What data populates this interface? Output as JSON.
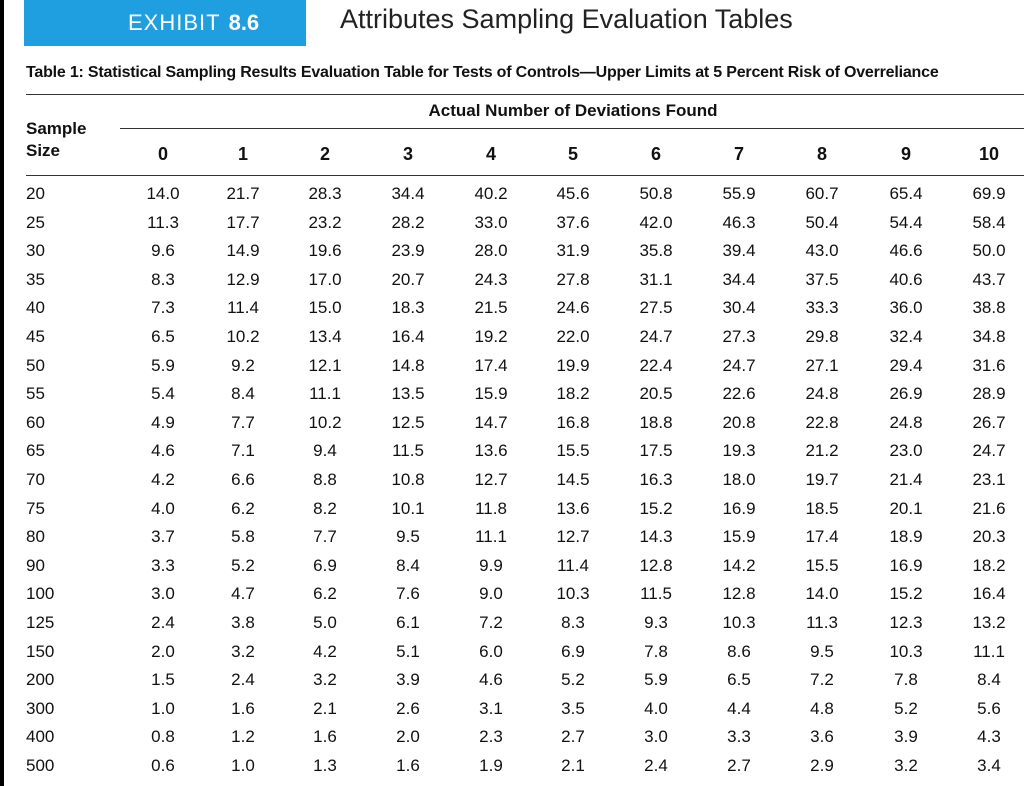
{
  "exhibit": {
    "label": "EXHIBIT",
    "number": "8.6",
    "title": "Attributes Sampling Evaluation Tables"
  },
  "table": {
    "caption": "Table 1: Statistical Sampling Results Evaluation Table for Tests of Controls—Upper Limits at 5 Percent Risk of Overreliance",
    "sample_header": [
      "Sample",
      "Size"
    ],
    "span_header": "Actual Number of Deviations Found",
    "columns": [
      "0",
      "1",
      "2",
      "3",
      "4",
      "5",
      "6",
      "7",
      "8",
      "9",
      "10"
    ],
    "rows": [
      {
        "size": "20",
        "values": [
          "14.0",
          "21.7",
          "28.3",
          "34.4",
          "40.2",
          "45.6",
          "50.8",
          "55.9",
          "60.7",
          "65.4",
          "69.9"
        ]
      },
      {
        "size": "25",
        "values": [
          "11.3",
          "17.7",
          "23.2",
          "28.2",
          "33.0",
          "37.6",
          "42.0",
          "46.3",
          "50.4",
          "54.4",
          "58.4"
        ]
      },
      {
        "size": "30",
        "values": [
          "9.6",
          "14.9",
          "19.6",
          "23.9",
          "28.0",
          "31.9",
          "35.8",
          "39.4",
          "43.0",
          "46.6",
          "50.0"
        ]
      },
      {
        "size": "35",
        "values": [
          "8.3",
          "12.9",
          "17.0",
          "20.7",
          "24.3",
          "27.8",
          "31.1",
          "34.4",
          "37.5",
          "40.6",
          "43.7"
        ]
      },
      {
        "size": "40",
        "values": [
          "7.3",
          "11.4",
          "15.0",
          "18.3",
          "21.5",
          "24.6",
          "27.5",
          "30.4",
          "33.3",
          "36.0",
          "38.8"
        ]
      },
      {
        "size": "45",
        "values": [
          "6.5",
          "10.2",
          "13.4",
          "16.4",
          "19.2",
          "22.0",
          "24.7",
          "27.3",
          "29.8",
          "32.4",
          "34.8"
        ]
      },
      {
        "size": "50",
        "values": [
          "5.9",
          "9.2",
          "12.1",
          "14.8",
          "17.4",
          "19.9",
          "22.4",
          "24.7",
          "27.1",
          "29.4",
          "31.6"
        ]
      },
      {
        "size": "55",
        "values": [
          "5.4",
          "8.4",
          "11.1",
          "13.5",
          "15.9",
          "18.2",
          "20.5",
          "22.6",
          "24.8",
          "26.9",
          "28.9"
        ]
      },
      {
        "size": "60",
        "values": [
          "4.9",
          "7.7",
          "10.2",
          "12.5",
          "14.7",
          "16.8",
          "18.8",
          "20.8",
          "22.8",
          "24.8",
          "26.7"
        ]
      },
      {
        "size": "65",
        "values": [
          "4.6",
          "7.1",
          "9.4",
          "11.5",
          "13.6",
          "15.5",
          "17.5",
          "19.3",
          "21.2",
          "23.0",
          "24.7"
        ]
      },
      {
        "size": "70",
        "values": [
          "4.2",
          "6.6",
          "8.8",
          "10.8",
          "12.7",
          "14.5",
          "16.3",
          "18.0",
          "19.7",
          "21.4",
          "23.1"
        ]
      },
      {
        "size": "75",
        "values": [
          "4.0",
          "6.2",
          "8.2",
          "10.1",
          "11.8",
          "13.6",
          "15.2",
          "16.9",
          "18.5",
          "20.1",
          "21.6"
        ]
      },
      {
        "size": "80",
        "values": [
          "3.7",
          "5.8",
          "7.7",
          "9.5",
          "11.1",
          "12.7",
          "14.3",
          "15.9",
          "17.4",
          "18.9",
          "20.3"
        ]
      },
      {
        "size": "90",
        "values": [
          "3.3",
          "5.2",
          "6.9",
          "8.4",
          "9.9",
          "11.4",
          "12.8",
          "14.2",
          "15.5",
          "16.9",
          "18.2"
        ]
      },
      {
        "size": "100",
        "values": [
          "3.0",
          "4.7",
          "6.2",
          "7.6",
          "9.0",
          "10.3",
          "11.5",
          "12.8",
          "14.0",
          "15.2",
          "16.4"
        ]
      },
      {
        "size": "125",
        "values": [
          "2.4",
          "3.8",
          "5.0",
          "6.1",
          "7.2",
          "8.3",
          "9.3",
          "10.3",
          "11.3",
          "12.3",
          "13.2"
        ]
      },
      {
        "size": "150",
        "values": [
          "2.0",
          "3.2",
          "4.2",
          "5.1",
          "6.0",
          "6.9",
          "7.8",
          "8.6",
          "9.5",
          "10.3",
          "11.1"
        ]
      },
      {
        "size": "200",
        "values": [
          "1.5",
          "2.4",
          "3.2",
          "3.9",
          "4.6",
          "5.2",
          "5.9",
          "6.5",
          "7.2",
          "7.8",
          "8.4"
        ]
      },
      {
        "size": "300",
        "values": [
          "1.0",
          "1.6",
          "2.1",
          "2.6",
          "3.1",
          "3.5",
          "4.0",
          "4.4",
          "4.8",
          "5.2",
          "5.6"
        ]
      },
      {
        "size": "400",
        "values": [
          "0.8",
          "1.2",
          "1.6",
          "2.0",
          "2.3",
          "2.7",
          "3.0",
          "3.3",
          "3.6",
          "3.9",
          "4.3"
        ]
      },
      {
        "size": "500",
        "values": [
          "0.6",
          "1.0",
          "1.3",
          "1.6",
          "1.9",
          "2.1",
          "2.4",
          "2.7",
          "2.9",
          "3.2",
          "3.4"
        ]
      }
    ]
  }
}
